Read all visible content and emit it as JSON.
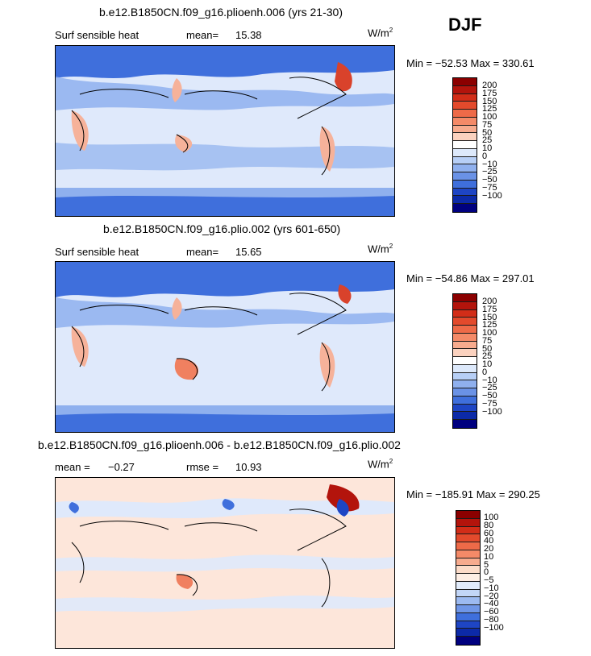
{
  "season": "DJF",
  "colors": {
    "ocean_pos_light": "#dfe9fb",
    "ocean_neg": "#8fb0ee",
    "ocean_neg_strong": "#3f6fdc",
    "warm": "#f6b29a",
    "warm_strong": "#d9422b",
    "land_line": "#000000"
  },
  "panels": [
    {
      "title": "b.e12.B1850CN.f09_g16.plioenh.006 (yrs 21-30)",
      "variable": "Surf sensible heat",
      "mean_label": "mean=",
      "mean_value": "15.38",
      "unit_base": "W/m",
      "unit_sup": "2",
      "minmax": "Min = −52.53 Max = 330.61"
    },
    {
      "title": "b.e12.B1850CN.f09_g16.plio.002 (yrs 601-650)",
      "variable": "Surf sensible heat",
      "mean_label": "mean=",
      "mean_value": "15.65",
      "unit_base": "W/m",
      "unit_sup": "2",
      "minmax": "Min = −54.86 Max = 297.01"
    },
    {
      "title": "b.e12.B1850CN.f09_g16.plioenh.006 - b.e12.B1850CN.f09_g16.plio.002",
      "mean_label": "mean =",
      "mean_value": "−0.27",
      "rmse_label": "rmse =",
      "rmse_value": "10.93",
      "unit_base": "W/m",
      "unit_sup": "2",
      "minmax": "Min = −185.91 Max = 290.25"
    }
  ],
  "colorbar_abs": {
    "labels": [
      "200",
      "175",
      "150",
      "125",
      "100",
      "75",
      "50",
      "25",
      "10",
      "0",
      "−10",
      "−25",
      "−50",
      "−75",
      "−100"
    ],
    "colors": [
      "#8b0000",
      "#b3140c",
      "#d22d18",
      "#e34a2c",
      "#ee6a48",
      "#f48a68",
      "#f7ab8e",
      "#fbd2bf",
      "#ffffff",
      "#dde9fb",
      "#b7cff6",
      "#8fb0ee",
      "#6a92e6",
      "#3f6fdc",
      "#1e45c4",
      "#0c2aa8",
      "#00007f"
    ]
  },
  "colorbar_diff": {
    "labels": [
      "100",
      "80",
      "60",
      "40",
      "20",
      "10",
      "5",
      "0",
      "−5",
      "−10",
      "−20",
      "−40",
      "−60",
      "−80",
      "−100"
    ],
    "colors": [
      "#8b0000",
      "#b3140c",
      "#d22d18",
      "#e34a2c",
      "#ee6a48",
      "#f48a68",
      "#f7ab8e",
      "#fcdcc9",
      "#fdeee4",
      "#e2ecfb",
      "#c2d6f7",
      "#9cbaf1",
      "#6f96e7",
      "#3f6fdc",
      "#1e45c4",
      "#0c2aa8",
      "#00007f"
    ]
  }
}
